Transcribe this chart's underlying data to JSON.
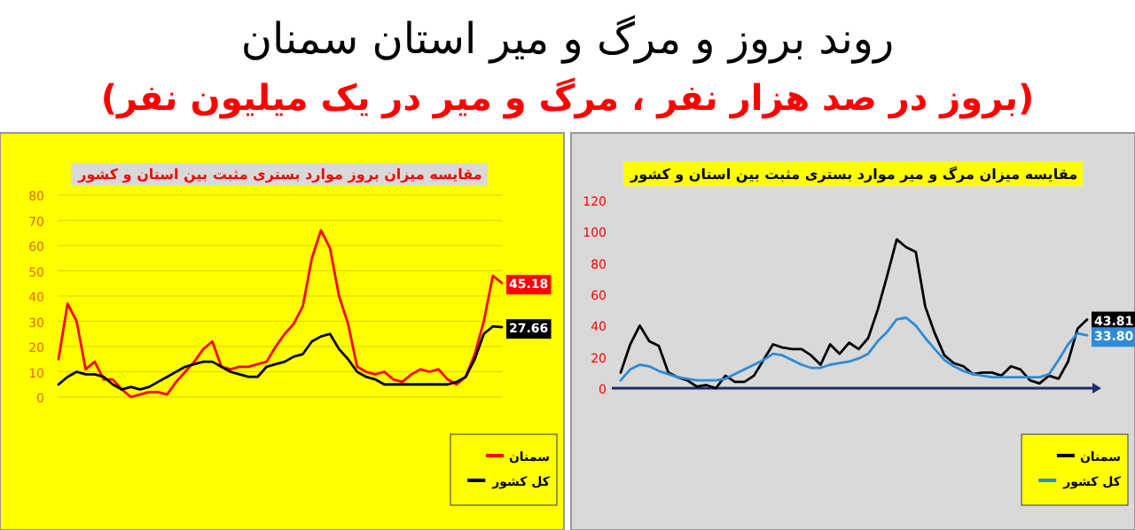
{
  "chart_data": [
    {
      "type": "other",
      "title": "روند بروز و مرگ و میر استان سمنان",
      "subtitle": "(بروز در صد هزار نفر ، مرگ و میر در یک میلیون نفر)"
    },
    {
      "type": "line",
      "title": "مقایسه میزان بروز موارد بستری مثبت بین استان و کشور",
      "categories": [
        null,
        null,
        null,
        null,
        null,
        null,
        null,
        null,
        null,
        null,
        null,
        null,
        null,
        null,
        null,
        null,
        null,
        null,
        null,
        null,
        null,
        null,
        null,
        null,
        null,
        null,
        null,
        null,
        null,
        null,
        null,
        null,
        null,
        null,
        null,
        null,
        null,
        null,
        null,
        null,
        null,
        null,
        null,
        null,
        null,
        null,
        null,
        null,
        null,
        null
      ],
      "ylim": [
        0,
        80
      ],
      "yticks": [
        0,
        10,
        20,
        30,
        40,
        50,
        60,
        70,
        80
      ],
      "grid": "y",
      "legend": "bottom right",
      "series": [
        {
          "name": "سمنان",
          "color": "#ff0000",
          "values": [
            15,
            37,
            30,
            11,
            14,
            7,
            7,
            3,
            0,
            1,
            2,
            2,
            1,
            6,
            10,
            14,
            19,
            22,
            12,
            11,
            12,
            12,
            13,
            14,
            20,
            25,
            29,
            36,
            55,
            66,
            59,
            40,
            29,
            12,
            10,
            9,
            10,
            7,
            6,
            9,
            11,
            10,
            11,
            7,
            5,
            8,
            17,
            30,
            48,
            45.18
          ],
          "value_labels": [
            null,
            null,
            null,
            null,
            null,
            null,
            null,
            null,
            null,
            null,
            null,
            null,
            null,
            null,
            null,
            null,
            null,
            null,
            null,
            null,
            null,
            null,
            null,
            null,
            null,
            null,
            null,
            null,
            null,
            null,
            null,
            null,
            null,
            null,
            null,
            null,
            null,
            null,
            null,
            null,
            null,
            null,
            null,
            null,
            null,
            null,
            null,
            null,
            null,
            "45.18"
          ]
        },
        {
          "name": "کل کشور",
          "color": "#000000",
          "values": [
            5,
            8,
            10,
            9,
            9,
            8,
            5,
            3,
            4,
            3,
            4,
            6,
            8,
            10,
            12,
            13,
            14,
            14,
            12,
            10,
            9,
            8,
            8,
            12,
            13,
            14,
            16,
            17,
            22,
            24,
            25,
            19,
            15,
            10,
            8,
            7,
            5,
            5,
            5,
            5,
            5,
            5,
            5,
            5,
            6,
            8,
            15,
            25,
            28,
            27.66
          ],
          "value_labels": [
            null,
            null,
            null,
            null,
            null,
            null,
            null,
            null,
            null,
            null,
            null,
            null,
            null,
            null,
            null,
            null,
            null,
            null,
            null,
            null,
            null,
            null,
            null,
            null,
            null,
            null,
            null,
            null,
            null,
            null,
            null,
            null,
            null,
            null,
            null,
            null,
            null,
            null,
            null,
            null,
            null,
            null,
            null,
            null,
            null,
            null,
            null,
            null,
            null,
            "27.66"
          ]
        }
      ]
    },
    {
      "type": "line",
      "title": "مقایسه میزان مرگ و میر موارد بستری مثبت بین استان و کشور",
      "categories": [
        null,
        null,
        null,
        null,
        null,
        null,
        null,
        null,
        null,
        null,
        null,
        null,
        null,
        null,
        null,
        null,
        null,
        null,
        null,
        null,
        null,
        null,
        null,
        null,
        null,
        null,
        null,
        null,
        null,
        null,
        null,
        null,
        null,
        null,
        null,
        null,
        null,
        null,
        null,
        null,
        null,
        null,
        null,
        null,
        null,
        null,
        null,
        null,
        null,
        null
      ],
      "ylim": [
        0,
        120
      ],
      "yticks": [
        0,
        20,
        40,
        60,
        80,
        100,
        120
      ],
      "legend": "bottom right",
      "series": [
        {
          "name": "سمنان",
          "color": "#000000",
          "values": [
            10,
            28,
            40,
            30,
            27,
            10,
            7,
            5,
            1,
            2,
            0,
            8,
            4,
            4,
            8,
            18,
            28,
            26,
            25,
            25,
            21,
            15,
            28,
            22,
            29,
            25,
            32,
            50,
            72,
            95,
            90,
            87,
            52,
            35,
            21,
            16,
            14,
            9,
            10,
            10,
            8,
            14,
            12,
            5,
            3,
            8,
            6,
            17,
            38,
            43.81
          ],
          "value_labels": [
            null,
            null,
            null,
            null,
            null,
            null,
            null,
            null,
            null,
            null,
            null,
            null,
            null,
            null,
            null,
            null,
            null,
            null,
            null,
            null,
            null,
            null,
            null,
            null,
            null,
            null,
            null,
            null,
            null,
            null,
            null,
            null,
            null,
            null,
            null,
            null,
            null,
            null,
            null,
            null,
            null,
            null,
            null,
            null,
            null,
            null,
            null,
            null,
            null,
            "43.81"
          ]
        },
        {
          "name": "کل کشور",
          "color": "#2e8bd6",
          "values": [
            5,
            12,
            15,
            14,
            11,
            9,
            7,
            6,
            5,
            5,
            5,
            6,
            9,
            12,
            15,
            18,
            22,
            21,
            18,
            15,
            13,
            13,
            15,
            16,
            17,
            19,
            22,
            30,
            36,
            44,
            45,
            40,
            32,
            25,
            18,
            14,
            11,
            9,
            8,
            7,
            7,
            7,
            7,
            7,
            7,
            9,
            18,
            28,
            35,
            33.8
          ],
          "value_labels": [
            null,
            null,
            null,
            null,
            null,
            null,
            null,
            null,
            null,
            null,
            null,
            null,
            null,
            null,
            null,
            null,
            null,
            null,
            null,
            null,
            null,
            null,
            null,
            null,
            null,
            null,
            null,
            null,
            null,
            null,
            null,
            null,
            null,
            null,
            null,
            null,
            null,
            null,
            null,
            null,
            null,
            null,
            null,
            null,
            null,
            null,
            null,
            null,
            null,
            "33.80"
          ]
        }
      ]
    }
  ]
}
